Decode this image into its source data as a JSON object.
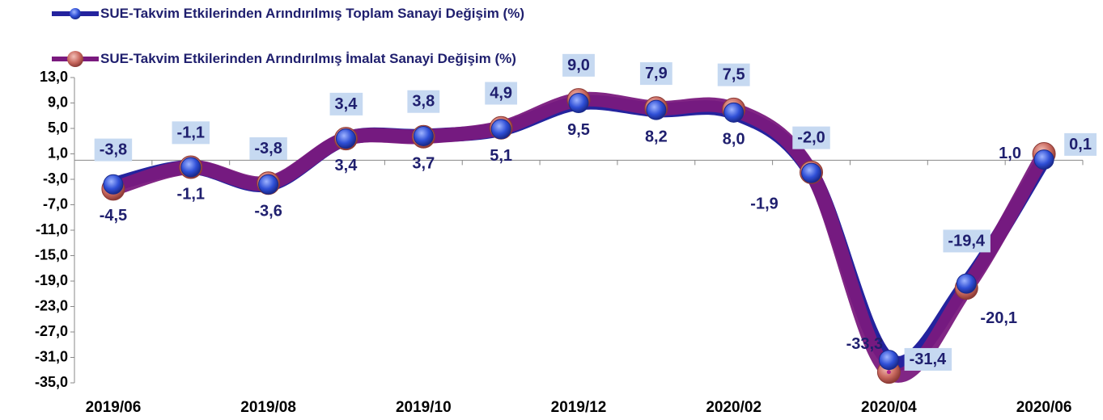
{
  "chart_data": {
    "type": "line",
    "categories": [
      "2019/06",
      null,
      "2019/08",
      null,
      "2019/10",
      null,
      "2019/12",
      null,
      "2020/02",
      null,
      "2020/04",
      null,
      "2020/06"
    ],
    "series": [
      {
        "name": "SUE-Takvim Etkilerinden Arındırılmış Toplam Sanayi Değişim (%)",
        "color": "#24239e",
        "values": [
          -3.8,
          -1.1,
          -3.8,
          3.4,
          3.8,
          4.9,
          9.0,
          7.9,
          7.5,
          -2.0,
          -31.4,
          -19.4,
          0.1
        ],
        "value_labels": [
          "-3,8",
          "-1,1",
          "-3,8",
          "3,4",
          "3,8",
          "4,9",
          "9,0",
          "7,9",
          "7,5",
          "-2,0",
          "-31,4",
          "-19,4",
          "0,1"
        ]
      },
      {
        "name": "SUE-Takvim Etkilerinden Arındırılmış İmalat Sanayi Değişim (%)",
        "color": "#c0504d",
        "values": [
          -4.5,
          -1.1,
          -3.6,
          3.4,
          3.7,
          5.1,
          9.5,
          8.2,
          8.0,
          -1.9,
          -33.3,
          -20.1,
          1.0
        ],
        "value_labels": [
          "-4,5",
          "-1,1",
          "-3,6",
          "3,4",
          "3,7",
          "5,1",
          "9,5",
          "8,2",
          "8,0",
          "-1,9",
          "-33,3",
          "-20,1",
          "1,0"
        ]
      }
    ],
    "ylim": [
      -35,
      13
    ],
    "yticks": [
      {
        "value": 13,
        "label": "13,0"
      },
      {
        "value": 9,
        "label": "9,0"
      },
      {
        "value": 5,
        "label": "5,0"
      },
      {
        "value": 1,
        "label": "1,0"
      },
      {
        "value": -3,
        "label": "-3,0"
      },
      {
        "value": -7,
        "label": "-7,0"
      },
      {
        "value": -11,
        "label": "-11,0"
      },
      {
        "value": -15,
        "label": "-15,0"
      },
      {
        "value": -19,
        "label": "-19,0"
      },
      {
        "value": -23,
        "label": "-23,0"
      },
      {
        "value": -27,
        "label": "-27,0"
      },
      {
        "value": -31,
        "label": "-31,0"
      },
      {
        "value": -35,
        "label": "-35,0"
      }
    ],
    "grid": false
  }
}
